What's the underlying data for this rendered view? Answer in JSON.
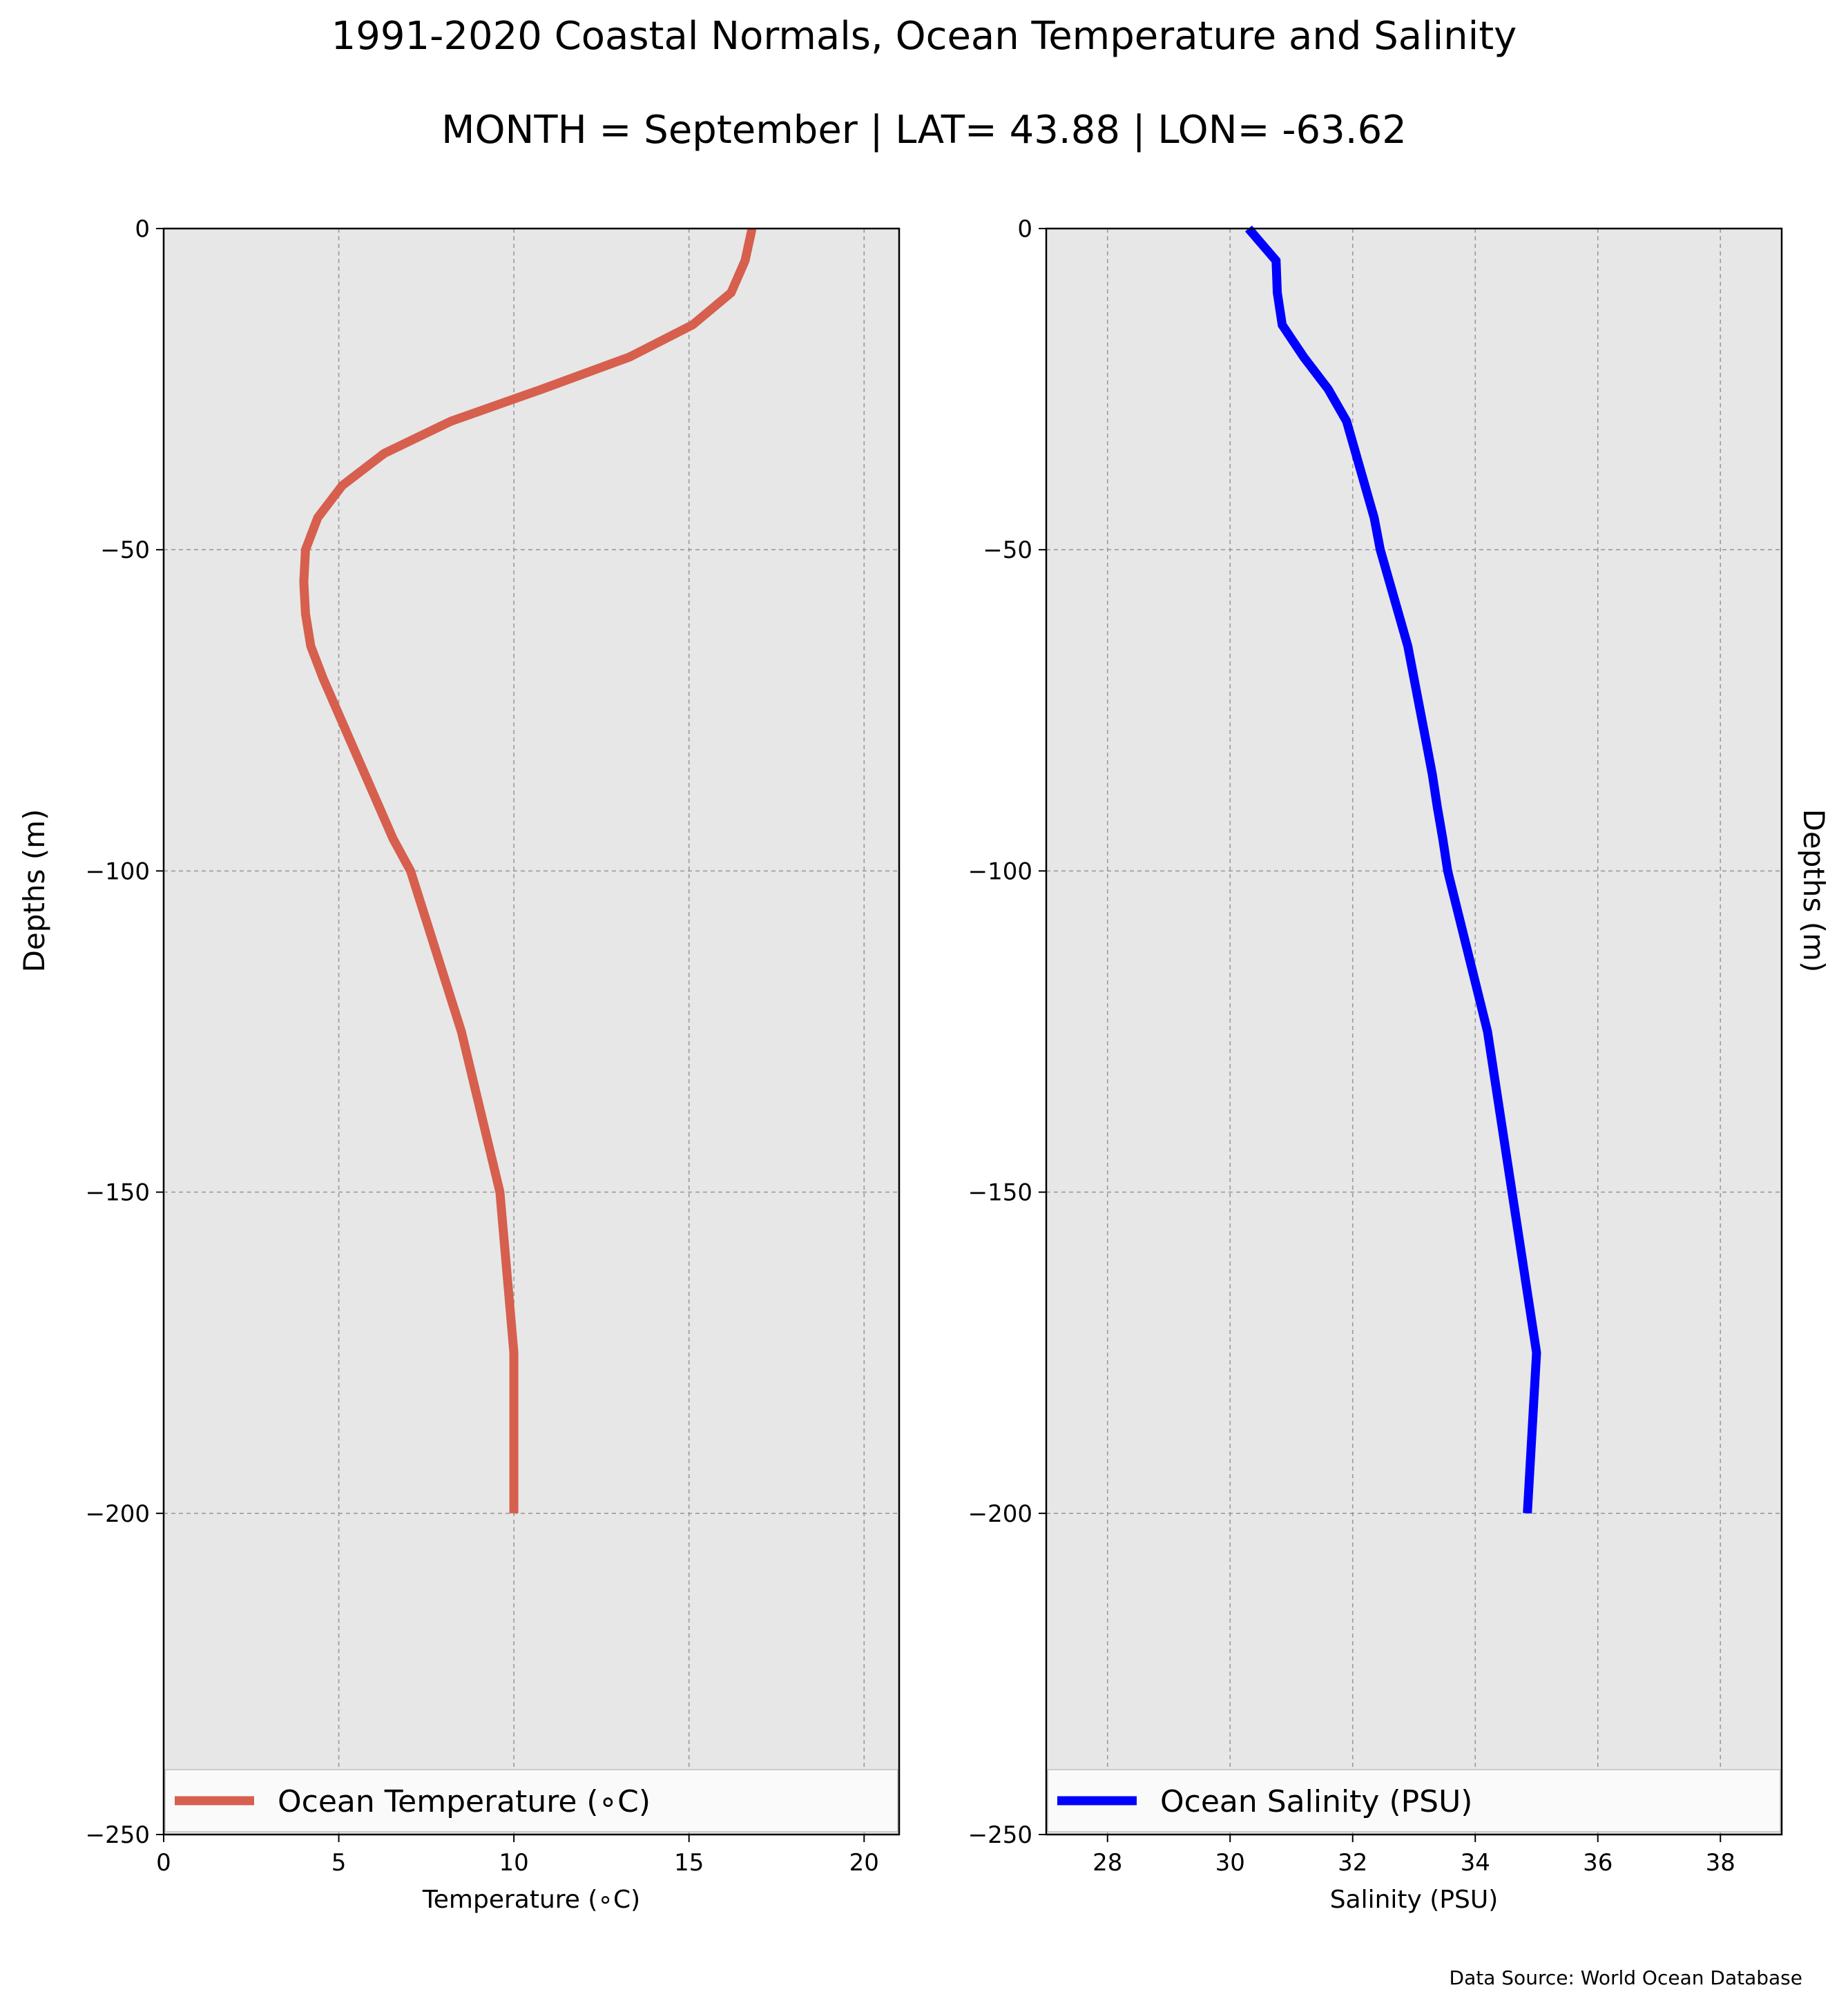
{
  "title": "1991-2020 Coastal Normals, Ocean Temperature and Salinity",
  "subtitle": "MONTH = September | LAT= 43.88 | LON= -63.62",
  "source": "Data Source: World Ocean Database",
  "chart_data": [
    {
      "type": "line",
      "xlabel": "Temperature (∘C)",
      "ylabel": "Depths (m)",
      "xlim": [
        0,
        21
      ],
      "ylim": [
        -250,
        0
      ],
      "xticks": [
        0,
        5,
        10,
        15,
        20
      ],
      "yticks": [
        0,
        -50,
        -100,
        -150,
        -200,
        -250
      ],
      "grid": true,
      "legend_position": "bottom",
      "color": "#d65f4e",
      "series": [
        {
          "name": "Ocean Temperature (∘C)",
          "y": [
            0,
            -5,
            -10,
            -15,
            -20,
            -25,
            -30,
            -35,
            -40,
            -45,
            -50,
            -55,
            -60,
            -65,
            -70,
            -75,
            -80,
            -85,
            -90,
            -95,
            -100,
            -125,
            -150,
            -175,
            -200
          ],
          "x": [
            16.8,
            16.6,
            16.2,
            15.1,
            13.3,
            10.8,
            8.2,
            6.3,
            5.1,
            4.4,
            4.05,
            4.0,
            4.05,
            4.2,
            4.55,
            4.95,
            5.35,
            5.75,
            6.15,
            6.55,
            7.05,
            8.5,
            9.6,
            10.0,
            10.0
          ]
        }
      ]
    },
    {
      "type": "line",
      "xlabel": "Salinity (PSU)",
      "ylabel": "Depths (m)",
      "xlim": [
        27,
        39
      ],
      "ylim": [
        -250,
        0
      ],
      "xticks": [
        28,
        30,
        32,
        34,
        36,
        38
      ],
      "yticks": [
        0,
        -50,
        -100,
        -150,
        -200,
        -250
      ],
      "grid": true,
      "legend_position": "bottom",
      "color": "#0000ff",
      "series": [
        {
          "name": "Ocean Salinity (PSU)",
          "y": [
            0,
            -5,
            -10,
            -15,
            -20,
            -25,
            -30,
            -35,
            -40,
            -45,
            -50,
            -55,
            -60,
            -65,
            -70,
            -75,
            -80,
            -85,
            -90,
            -95,
            -100,
            -125,
            -150,
            -175,
            -200
          ],
          "x": [
            30.3,
            30.75,
            30.77,
            30.85,
            31.2,
            31.6,
            31.9,
            32.05,
            32.2,
            32.35,
            32.45,
            32.6,
            32.75,
            32.9,
            33.0,
            33.1,
            33.2,
            33.3,
            33.38,
            33.47,
            33.55,
            34.2,
            34.6,
            35.0,
            34.85
          ]
        }
      ]
    }
  ]
}
